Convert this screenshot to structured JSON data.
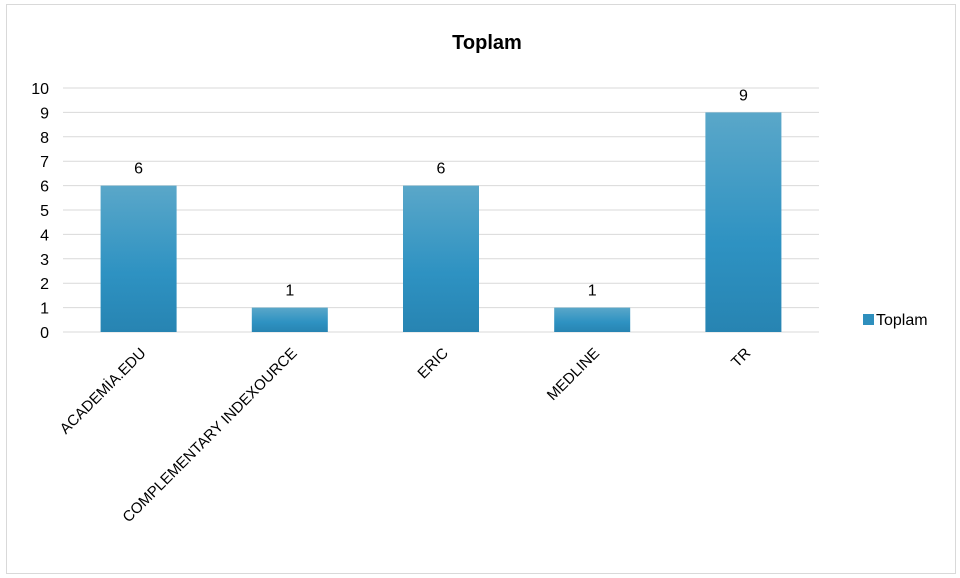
{
  "chart_data": {
    "type": "bar",
    "title": "Toplam",
    "categories": [
      "ACADEMİA.EDU",
      "COMPLEMENTARY INDEXOURCE",
      "ERIC",
      "MEDLINE",
      "TR"
    ],
    "series": [
      {
        "name": "Toplam",
        "values": [
          6,
          1,
          6,
          1,
          9
        ]
      }
    ],
    "data_labels": [
      "6",
      "1",
      "6",
      "1",
      "9"
    ],
    "yticks": [
      "0",
      "1",
      "2",
      "3",
      "4",
      "5",
      "6",
      "7",
      "8",
      "9",
      "10"
    ],
    "ylim": [
      0,
      10
    ],
    "grid": true,
    "legend_position": "right",
    "colors": {
      "bar_top": "#5aa7c9",
      "bar_bottom": "#2784b2",
      "legend_swatch": "#2e8fbd",
      "gridline": "#d9d9d9"
    }
  }
}
